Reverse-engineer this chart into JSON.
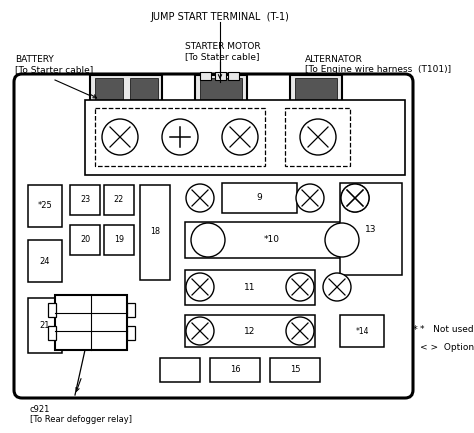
{
  "bg_color": "#ffffff",
  "title": "JUMP START TERMINAL  (T-1)",
  "labels": {
    "battery": "BATTERY\n[To Starter cable]",
    "starter_motor": "STARTER MOTOR\n[To Stater cable]",
    "alternator": "ALTERNATOR\n[To Engine wire harness  (T101)]",
    "c921": "c921\n[To Rear defogger relay]",
    "note1": "*   Not used",
    "note2": "< >  Option"
  },
  "figsize": [
    4.74,
    4.33
  ],
  "dpi": 100
}
